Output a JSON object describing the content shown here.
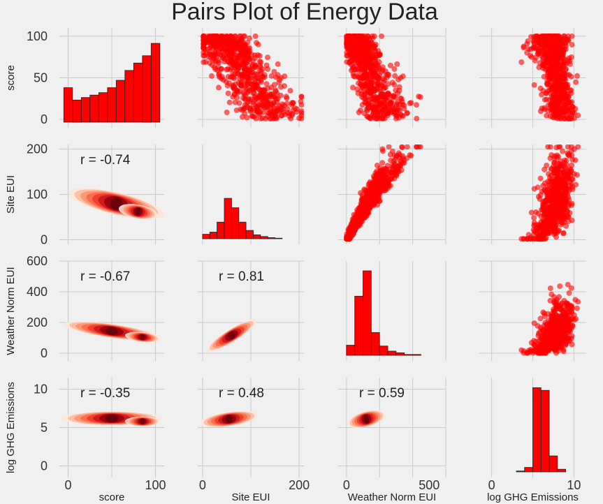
{
  "chart_data": {
    "type": "scatter",
    "title": "Pairs Plot of Energy Data",
    "variables": [
      "score",
      "Site EUI",
      "Weather Norm EUI",
      "log GHG Emissions"
    ],
    "axis_ranges": [
      [
        -10,
        110
      ],
      [
        -10,
        210
      ],
      [
        -50,
        600
      ],
      [
        -1.5,
        11.5
      ]
    ],
    "ticks": [
      [
        0,
        50,
        100
      ],
      [
        0,
        100,
        200
      ],
      [
        0,
        200,
        400,
        600
      ],
      [
        0,
        5,
        10
      ]
    ],
    "x_ticks_bottom": [
      [
        0,
        100
      ],
      [
        0,
        200
      ],
      [
        0,
        500
      ],
      [
        0,
        10
      ]
    ],
    "correlations": [
      {
        "row": 1,
        "col": 0,
        "label": "r = -0.74"
      },
      {
        "row": 2,
        "col": 0,
        "label": "r = -0.67"
      },
      {
        "row": 2,
        "col": 1,
        "label": "r = 0.81"
      },
      {
        "row": 3,
        "col": 0,
        "label": "r = -0.35"
      },
      {
        "row": 3,
        "col": 1,
        "label": "r = 0.48"
      },
      {
        "row": 3,
        "col": 2,
        "label": "r = 0.59"
      }
    ],
    "histograms": [
      {
        "variable": "score",
        "bin_edges": [
          -5,
          5,
          15,
          25,
          35,
          45,
          55,
          65,
          75,
          85,
          95,
          105
        ],
        "counts": [
          14,
          9,
          10,
          11,
          12,
          14,
          17,
          21,
          24,
          27,
          32
        ]
      },
      {
        "variable": "Site EUI",
        "bin_edges": [
          0,
          15,
          30,
          45,
          60,
          75,
          90,
          105,
          120,
          135,
          150,
          165
        ],
        "counts": [
          8,
          12,
          30,
          73,
          56,
          30,
          15,
          7,
          4,
          2,
          1
        ]
      },
      {
        "variable": "Weather Norm EUI",
        "bin_edges": [
          0,
          50,
          100,
          150,
          200,
          250,
          300,
          350,
          400,
          450
        ],
        "counts": [
          12,
          70,
          100,
          27,
          11,
          5,
          3,
          1,
          1
        ]
      },
      {
        "variable": "log GHG Emissions",
        "bin_edges": [
          3,
          4,
          5,
          6,
          7,
          8,
          9
        ],
        "counts": [
          1,
          5,
          95,
          92,
          18,
          3
        ]
      }
    ],
    "scatter_color": "#ff0000",
    "hist_color": "#ff0000",
    "kde_colormap": "Reds",
    "background": "#f0f0f0",
    "grid": true
  }
}
